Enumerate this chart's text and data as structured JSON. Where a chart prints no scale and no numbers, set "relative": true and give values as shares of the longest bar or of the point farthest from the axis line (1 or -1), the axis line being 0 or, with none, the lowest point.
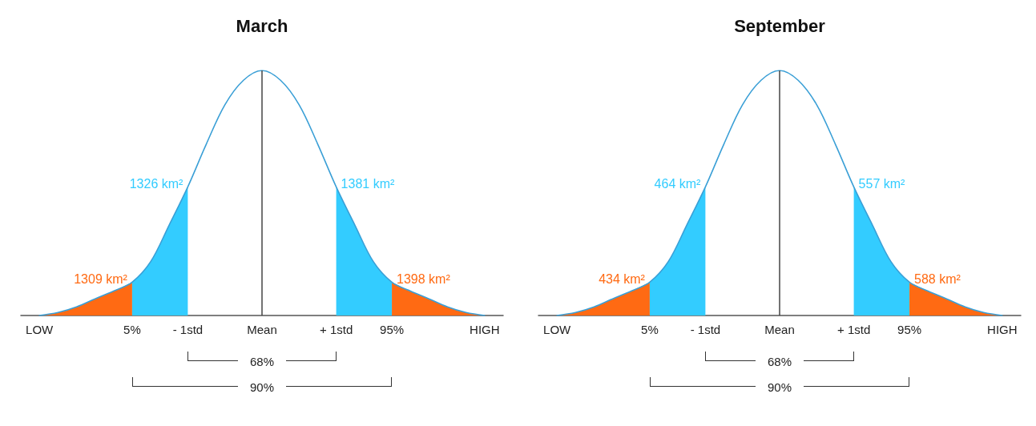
{
  "chart_data": [
    {
      "type": "area",
      "title": "March",
      "relative": true,
      "categories": [
        null,
        "LOW",
        null,
        null,
        null,
        null,
        "5%",
        null,
        null,
        "- 1std",
        null,
        null,
        null,
        "Mean",
        null,
        null,
        null,
        "+ 1std",
        null,
        null,
        "95%",
        null,
        null,
        null,
        null,
        "HIGH",
        null
      ],
      "series": [
        {
          "type": "line",
          "color": "#3a9fd6",
          "values": [
            null,
            0,
            0.012,
            0.035,
            0.068,
            0.1,
            0.136,
            0.22,
            0.37,
            0.525,
            0.7,
            0.86,
            0.96,
            1,
            0.96,
            0.86,
            0.7,
            0.525,
            0.37,
            0.22,
            0.136,
            0.1,
            0.068,
            0.035,
            0.012,
            0,
            null
          ]
        },
        {
          "color": "#ff6a13",
          "values": [
            null,
            0,
            0.012,
            0.035,
            0.068,
            0.1,
            0.136,
            null,
            null,
            null,
            null,
            null,
            null,
            null,
            null,
            null,
            null,
            null,
            null,
            null,
            null,
            null,
            null,
            null,
            null,
            null,
            null
          ]
        },
        {
          "color": "#33ccff",
          "values": [
            null,
            null,
            null,
            null,
            null,
            null,
            0.136,
            0.22,
            0.37,
            0.525,
            null,
            null,
            null,
            null,
            null,
            null,
            null,
            null,
            null,
            null,
            null,
            null,
            null,
            null,
            null,
            null,
            null
          ]
        },
        {
          "color": "#33ccff",
          "values": [
            null,
            null,
            null,
            null,
            null,
            null,
            null,
            null,
            null,
            null,
            null,
            null,
            null,
            null,
            null,
            null,
            null,
            0.525,
            0.37,
            0.22,
            0.136,
            null,
            null,
            null,
            null,
            null,
            null
          ]
        },
        {
          "color": "#ff6a13",
          "values": [
            null,
            null,
            null,
            null,
            null,
            null,
            null,
            null,
            null,
            null,
            null,
            null,
            null,
            null,
            null,
            null,
            null,
            null,
            null,
            null,
            0.136,
            0.1,
            0.068,
            0.035,
            0.012,
            0,
            null
          ]
        }
      ],
      "ref_lines": [
        {
          "axis": "x",
          "value": "Mean",
          "color": "#444444"
        }
      ],
      "annotations": [
        {
          "text": "1309 km²",
          "x": "5%",
          "y": 0.136
        },
        {
          "text": "1326 km²",
          "x": "- 1std",
          "y": 0.525
        },
        {
          "text": "1381 km²",
          "x": "+ 1std",
          "y": 0.525
        },
        {
          "text": "1398 km²",
          "x": "95%",
          "y": 0.136
        },
        "68%",
        "90%"
      ]
    },
    {
      "type": "area",
      "title": "September",
      "relative": true,
      "categories": [
        null,
        "LOW",
        null,
        null,
        null,
        null,
        "5%",
        null,
        null,
        "- 1std",
        null,
        null,
        null,
        "Mean",
        null,
        null,
        null,
        "+ 1std",
        null,
        null,
        "95%",
        null,
        null,
        null,
        null,
        "HIGH",
        null
      ],
      "series": [
        {
          "type": "line",
          "color": "#3a9fd6",
          "values": [
            null,
            0,
            0.012,
            0.035,
            0.068,
            0.1,
            0.136,
            0.22,
            0.37,
            0.525,
            0.7,
            0.86,
            0.96,
            1,
            0.96,
            0.86,
            0.7,
            0.525,
            0.37,
            0.22,
            0.136,
            0.1,
            0.068,
            0.035,
            0.012,
            0,
            null
          ]
        },
        {
          "color": "#ff6a13",
          "values": [
            null,
            0,
            0.012,
            0.035,
            0.068,
            0.1,
            0.136,
            null,
            null,
            null,
            null,
            null,
            null,
            null,
            null,
            null,
            null,
            null,
            null,
            null,
            null,
            null,
            null,
            null,
            null,
            null,
            null
          ]
        },
        {
          "color": "#33ccff",
          "values": [
            null,
            null,
            null,
            null,
            null,
            null,
            0.136,
            0.22,
            0.37,
            0.525,
            null,
            null,
            null,
            null,
            null,
            null,
            null,
            null,
            null,
            null,
            null,
            null,
            null,
            null,
            null,
            null,
            null
          ]
        },
        {
          "color": "#33ccff",
          "values": [
            null,
            null,
            null,
            null,
            null,
            null,
            null,
            null,
            null,
            null,
            null,
            null,
            null,
            null,
            null,
            null,
            null,
            0.525,
            0.37,
            0.22,
            0.136,
            null,
            null,
            null,
            null,
            null,
            null
          ]
        },
        {
          "color": "#ff6a13",
          "values": [
            null,
            null,
            null,
            null,
            null,
            null,
            null,
            null,
            null,
            null,
            null,
            null,
            null,
            null,
            null,
            null,
            null,
            null,
            null,
            null,
            0.136,
            0.1,
            0.068,
            0.035,
            0.012,
            0,
            null
          ]
        }
      ],
      "ref_lines": [
        {
          "axis": "x",
          "value": "Mean",
          "color": "#444444"
        }
      ],
      "annotations": [
        {
          "text": "434 km²",
          "x": "5%",
          "y": 0.136
        },
        {
          "text": "464 km²",
          "x": "- 1std",
          "y": 0.525
        },
        {
          "text": "557 km²",
          "x": "+ 1std",
          "y": 0.525
        },
        {
          "text": "588 km²",
          "x": "95%",
          "y": 0.136
        },
        "68%",
        "90%"
      ]
    }
  ]
}
